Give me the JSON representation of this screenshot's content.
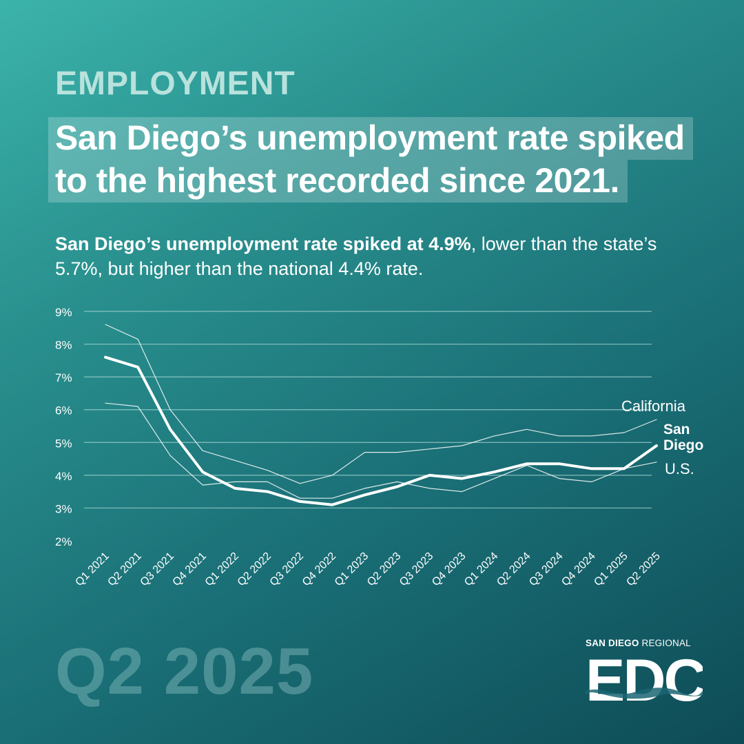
{
  "header": {
    "eyebrow": "EMPLOYMENT",
    "headline_lines": [
      "San Diego’s unemployment rate spiked",
      "to the highest recorded since 2021."
    ],
    "subhead_bold": "San Diego’s unemployment rate spiked at 4.9%",
    "subhead_rest": ", lower than the state’s 5.7%, but higher than the national 4.4% rate."
  },
  "footer": {
    "period": "Q2 2025",
    "logo_top_bold": "SAN DIEGO",
    "logo_top_light": "REGIONAL",
    "logo_mark": "EDC"
  },
  "colors": {
    "line": "#ffffff",
    "grid": "#a9d8d4",
    "accent_light": "#b9e2dd"
  },
  "chart_data": {
    "type": "line",
    "categories": [
      "Q1 2021",
      "Q2 2021",
      "Q3 2021",
      "Q4 2021",
      "Q1 2022",
      "Q2 2022",
      "Q3 2022",
      "Q4 2022",
      "Q1 2023",
      "Q2 2023",
      "Q3 2023",
      "Q4 2023",
      "Q1 2024",
      "Q2 2024",
      "Q3 2024",
      "Q4 2024",
      "Q1 2025",
      "Q2 2025"
    ],
    "yticks": [
      "2%",
      "3%",
      "4%",
      "5%",
      "6%",
      "7%",
      "8%",
      "9%"
    ],
    "ylim": [
      2,
      9
    ],
    "grid": true,
    "series": [
      {
        "name": "California",
        "values": [
          8.6,
          8.15,
          6.0,
          4.75,
          4.45,
          4.15,
          3.75,
          4.0,
          4.7,
          4.7,
          4.8,
          4.9,
          5.2,
          5.4,
          5.2,
          5.2,
          5.3,
          5.7
        ],
        "emphasis": false
      },
      {
        "name": "San Diego",
        "values": [
          7.6,
          7.3,
          5.4,
          4.1,
          3.6,
          3.5,
          3.2,
          3.1,
          3.4,
          3.65,
          4.0,
          3.9,
          4.1,
          4.35,
          4.35,
          4.2,
          4.2,
          4.9
        ],
        "emphasis": true
      },
      {
        "name": "U.S.",
        "values": [
          6.2,
          6.1,
          4.6,
          3.7,
          3.8,
          3.8,
          3.3,
          3.3,
          3.6,
          3.8,
          3.6,
          3.5,
          3.9,
          4.3,
          3.9,
          3.8,
          4.2,
          4.4
        ],
        "emphasis": false
      }
    ]
  }
}
